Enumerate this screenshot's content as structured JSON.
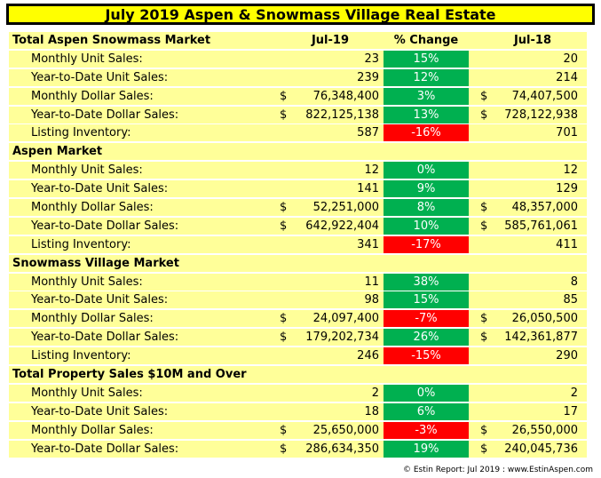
{
  "title": "July 2019 Aspen & Snowmass Village Real Estate",
  "columns": {
    "current": "Jul-19",
    "change": "% Change",
    "prior": "Jul-18"
  },
  "sections": [
    {
      "heading": "Total Aspen Snowmass Market",
      "show_columns": true,
      "rows": [
        {
          "label": "Monthly Unit Sales:",
          "cur_prefix": "",
          "current": "23",
          "change": "15%",
          "direction": "up",
          "prior_prefix": "",
          "prior": "20"
        },
        {
          "label": "Year-to-Date Unit Sales:",
          "cur_prefix": "",
          "current": "239",
          "change": "12%",
          "direction": "up",
          "prior_prefix": "",
          "prior": "214"
        },
        {
          "label": "Monthly Dollar Sales:",
          "cur_prefix": "$",
          "current": "76,348,400",
          "change": "3%",
          "direction": "up",
          "prior_prefix": "$",
          "prior": "74,407,500"
        },
        {
          "label": "Year-to-Date Dollar Sales:",
          "cur_prefix": "$",
          "current": "822,125,138",
          "change": "13%",
          "direction": "up",
          "prior_prefix": "$",
          "prior": "728,122,938"
        },
        {
          "label": "Listing Inventory:",
          "cur_prefix": "",
          "current": "587",
          "change": "-16%",
          "direction": "down",
          "prior_prefix": "",
          "prior": "701"
        }
      ]
    },
    {
      "heading": "Aspen Market",
      "show_columns": false,
      "rows": [
        {
          "label": "Monthly Unit Sales:",
          "cur_prefix": "",
          "current": "12",
          "change": "0%",
          "direction": "up",
          "prior_prefix": "",
          "prior": "12"
        },
        {
          "label": "Year-to-Date Unit Sales:",
          "cur_prefix": "",
          "current": "141",
          "change": "9%",
          "direction": "up",
          "prior_prefix": "",
          "prior": "129"
        },
        {
          "label": "Monthly Dollar Sales:",
          "cur_prefix": "$",
          "current": "52,251,000",
          "change": "8%",
          "direction": "up",
          "prior_prefix": "$",
          "prior": "48,357,000"
        },
        {
          "label": "Year-to-Date Dollar Sales:",
          "cur_prefix": "$",
          "current": "642,922,404",
          "change": "10%",
          "direction": "up",
          "prior_prefix": "$",
          "prior": "585,761,061"
        },
        {
          "label": "Listing Inventory:",
          "cur_prefix": "",
          "current": "341",
          "change": "-17%",
          "direction": "down",
          "prior_prefix": "",
          "prior": "411"
        }
      ]
    },
    {
      "heading": "Snowmass Village Market",
      "show_columns": false,
      "rows": [
        {
          "label": "Monthly Unit Sales:",
          "cur_prefix": "",
          "current": "11",
          "change": "38%",
          "direction": "up",
          "prior_prefix": "",
          "prior": "8"
        },
        {
          "label": "Year-to-Date Unit Sales:",
          "cur_prefix": "",
          "current": "98",
          "change": "15%",
          "direction": "up",
          "prior_prefix": "",
          "prior": "85"
        },
        {
          "label": "Monthly Dollar Sales:",
          "cur_prefix": "$",
          "current": "24,097,400",
          "change": "-7%",
          "direction": "down",
          "prior_prefix": "$",
          "prior": "26,050,500"
        },
        {
          "label": "Year-to-Date Dollar Sales:",
          "cur_prefix": "$",
          "current": "179,202,734",
          "change": "26%",
          "direction": "up",
          "prior_prefix": "$",
          "prior": "142,361,877"
        },
        {
          "label": "Listing Inventory:",
          "cur_prefix": "",
          "current": "246",
          "change": "-15%",
          "direction": "down",
          "prior_prefix": "",
          "prior": "290"
        }
      ]
    },
    {
      "heading": "Total Property Sales $10M and Over",
      "show_columns": false,
      "rows": [
        {
          "label": "Monthly Unit Sales:",
          "cur_prefix": "",
          "current": "2",
          "change": "0%",
          "direction": "up",
          "prior_prefix": "",
          "prior": "2"
        },
        {
          "label": "Year-to-Date Unit Sales:",
          "cur_prefix": "",
          "current": "18",
          "change": "6%",
          "direction": "up",
          "prior_prefix": "",
          "prior": "17"
        },
        {
          "label": "Monthly Dollar Sales:",
          "cur_prefix": "$",
          "current": "25,650,000",
          "change": "-3%",
          "direction": "down",
          "prior_prefix": "$",
          "prior": "26,550,000"
        },
        {
          "label": "Year-to-Date Dollar Sales:",
          "cur_prefix": "$",
          "current": "286,634,350",
          "change": "19%",
          "direction": "up",
          "prior_prefix": "$",
          "prior": "240,045,736"
        }
      ]
    }
  ],
  "footer": "© Estin Report: Jul 2019 : www.EstinAspen.com",
  "colors": {
    "title_bg": "#ffff00",
    "row_bg": "#ffff99",
    "positive": "#00b050",
    "negative": "#ff0000"
  }
}
